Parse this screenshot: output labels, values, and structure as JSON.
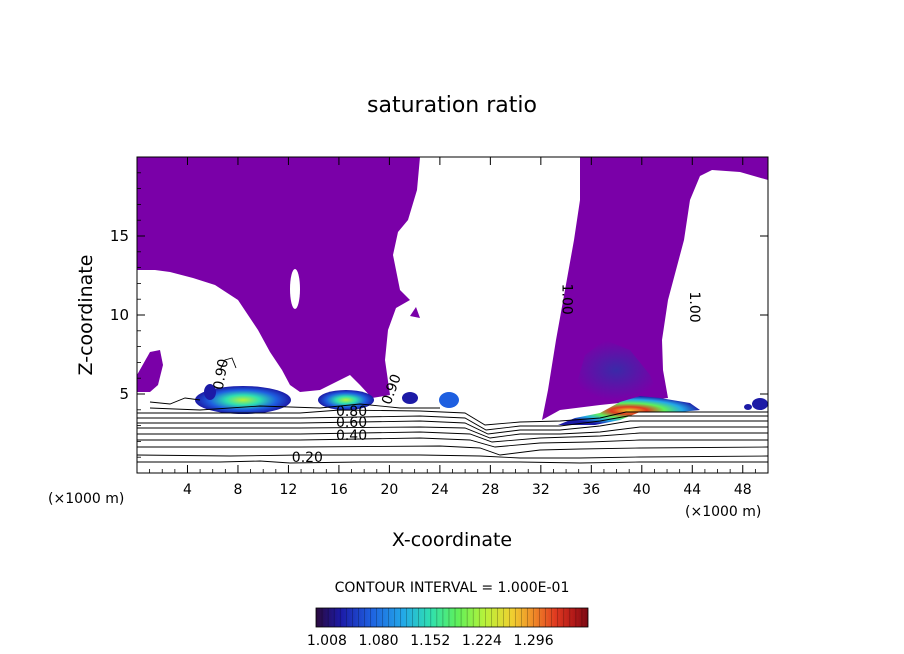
{
  "chart_data": {
    "type": "contour",
    "title": "saturation ratio",
    "xlabel": "X-coordinate",
    "ylabel": "Z-coordinate",
    "x_units_left": "(×1000 m)",
    "x_units_right": "(×1000 m)",
    "xlim": [
      0,
      50
    ],
    "ylim": [
      0,
      20
    ],
    "x_ticks": [
      "4",
      "8",
      "12",
      "16",
      "20",
      "24",
      "28",
      "32",
      "36",
      "40",
      "44",
      "48"
    ],
    "x_tick_values": [
      4,
      8,
      12,
      16,
      20,
      24,
      28,
      32,
      36,
      40,
      44,
      48
    ],
    "y_ticks": [
      "5",
      "10",
      "15"
    ],
    "y_tick_values": [
      5,
      10,
      15
    ],
    "contour_interval_text": "CONTOUR INTERVAL = 1.000E-01",
    "contour_labels": [
      {
        "text": "0.20",
        "x": 13.5,
        "z": 0.7
      },
      {
        "text": "0.40",
        "x": 17.0,
        "z": 2.1
      },
      {
        "text": "0.60",
        "x": 17.0,
        "z": 2.9
      },
      {
        "text": "0.80",
        "x": 17.0,
        "z": 3.6
      },
      {
        "text": "0.90",
        "x": 7.0,
        "z": 6.2
      },
      {
        "text": "0.90",
        "x": 20.5,
        "z": 5.2
      },
      {
        "text": "1.00",
        "x": 33.7,
        "z": 11.0
      },
      {
        "text": "1.00",
        "x": 43.8,
        "z": 10.5
      }
    ],
    "colorbar_ticks": [
      "1.008",
      "1.080",
      "1.152",
      "1.224",
      "1.296"
    ],
    "colors": {
      "supersaturated_fill": "#7a00a8",
      "colormap": [
        "#2b0a3d",
        "#1c1aa6",
        "#1e5fe0",
        "#23a8e8",
        "#2fe0b0",
        "#5ff05a",
        "#b8f23a",
        "#f0d030",
        "#f08a28",
        "#e03a20",
        "#b01818",
        "#7a0a14"
      ]
    },
    "grid": false,
    "legend": "colorbar-bottom"
  }
}
